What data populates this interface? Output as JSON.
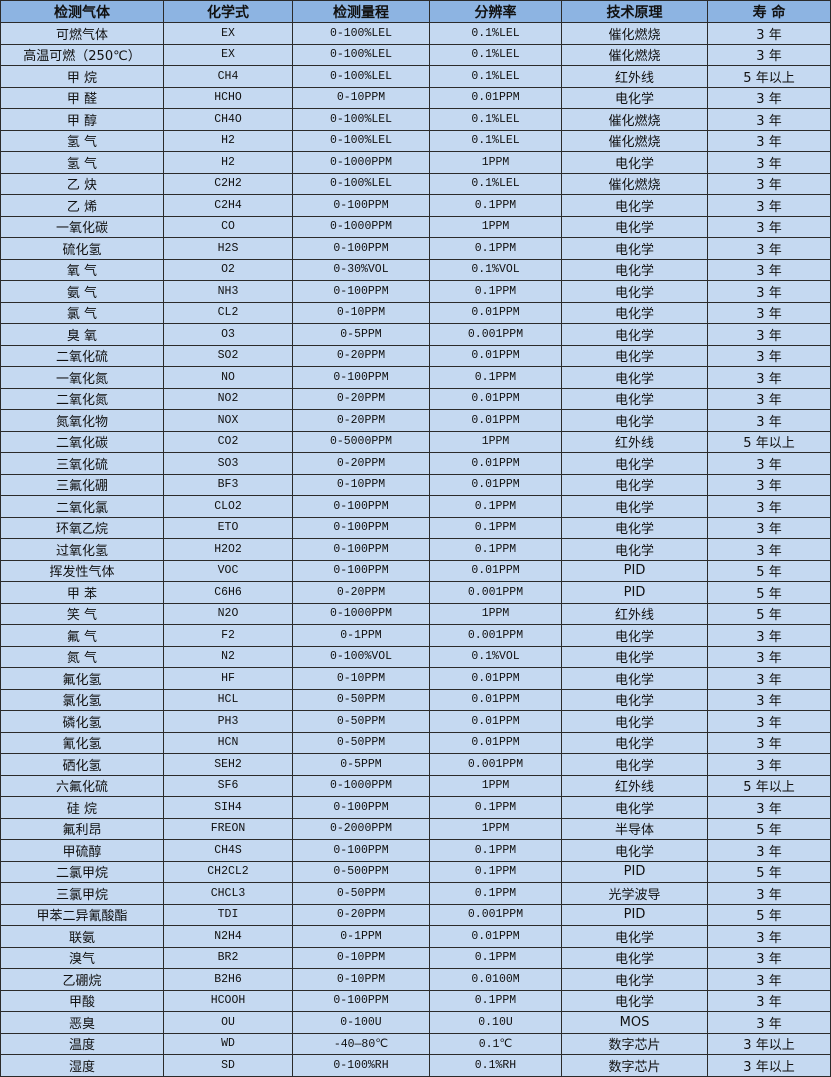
{
  "header_bg": "#8db4e2",
  "row_bg": "#c5d9f1",
  "headers": [
    "检测气体",
    "化学式",
    "检测量程",
    "分辨率",
    "技术原理",
    "寿 命"
  ],
  "rows": [
    [
      "可燃气体",
      "EX",
      "0-100%LEL",
      "0.1%LEL",
      "催化燃烧",
      "3 年"
    ],
    [
      "高温可燃（250℃）",
      "EX",
      "0-100%LEL",
      "0.1%LEL",
      "催化燃烧",
      "3 年"
    ],
    [
      "甲 烷",
      "CH4",
      "0-100%LEL",
      "0.1%LEL",
      "红外线",
      "5 年以上"
    ],
    [
      "甲 醛",
      "HCHO",
      "0-10PPM",
      "0.01PPM",
      "电化学",
      "3 年"
    ],
    [
      "甲 醇",
      "CH4O",
      "0-100%LEL",
      "0.1%LEL",
      "催化燃烧",
      "3 年"
    ],
    [
      "氢 气",
      "H2",
      "0-100%LEL",
      "0.1%LEL",
      "催化燃烧",
      "3 年"
    ],
    [
      "氢 气",
      "H2",
      "0-1000PPM",
      "1PPM",
      "电化学",
      "3 年"
    ],
    [
      "乙 炔",
      "C2H2",
      "0-100%LEL",
      "0.1%LEL",
      "催化燃烧",
      "3 年"
    ],
    [
      "乙 烯",
      "C2H4",
      "0-100PPM",
      "0.1PPM",
      "电化学",
      "3 年"
    ],
    [
      "一氧化碳",
      "CO",
      "0-1000PPM",
      "1PPM",
      "电化学",
      "3 年"
    ],
    [
      "硫化氢",
      "H2S",
      "0-100PPM",
      "0.1PPM",
      "电化学",
      "3 年"
    ],
    [
      "氧 气",
      "O2",
      "0-30%VOL",
      "0.1%VOL",
      "电化学",
      "3 年"
    ],
    [
      "氨 气",
      "NH3",
      "0-100PPM",
      "0.1PPM",
      "电化学",
      "3 年"
    ],
    [
      "氯 气",
      "CL2",
      "0-10PPM",
      "0.01PPM",
      "电化学",
      "3 年"
    ],
    [
      "臭 氧",
      "O3",
      "0-5PPM",
      "0.001PPM",
      "电化学",
      "3 年"
    ],
    [
      "二氧化硫",
      "SO2",
      "0-20PPM",
      "0.01PPM",
      "电化学",
      "3 年"
    ],
    [
      "一氧化氮",
      "NO",
      "0-100PPM",
      "0.1PPM",
      "电化学",
      "3 年"
    ],
    [
      "二氧化氮",
      "NO2",
      "0-20PPM",
      "0.01PPM",
      "电化学",
      "3 年"
    ],
    [
      "氮氧化物",
      "NOX",
      "0-20PPM",
      "0.01PPM",
      "电化学",
      "3 年"
    ],
    [
      "二氧化碳",
      "CO2",
      "0-5000PPM",
      "1PPM",
      "红外线",
      "5 年以上"
    ],
    [
      "三氧化硫",
      "SO3",
      "0-20PPM",
      "0.01PPM",
      "电化学",
      "3 年"
    ],
    [
      "三氟化硼",
      "BF3",
      "0-10PPM",
      "0.01PPM",
      "电化学",
      "3 年"
    ],
    [
      "二氧化氯",
      "CLO2",
      "0-100PPM",
      "0.1PPM",
      "电化学",
      "3 年"
    ],
    [
      "环氧乙烷",
      "ETO",
      "0-100PPM",
      "0.1PPM",
      "电化学",
      "3 年"
    ],
    [
      "过氧化氢",
      "H2O2",
      "0-100PPM",
      "0.1PPM",
      "电化学",
      "3 年"
    ],
    [
      "挥发性气体",
      "VOC",
      "0-100PPM",
      "0.01PPM",
      "PID",
      "5 年"
    ],
    [
      "甲 苯",
      "C6H6",
      "0-20PPM",
      "0.001PPM",
      "PID",
      "5 年"
    ],
    [
      "笑 气",
      "N2O",
      "0-1000PPM",
      "1PPM",
      "红外线",
      "5 年"
    ],
    [
      "氟 气",
      "F2",
      "0-1PPM",
      "0.001PPM",
      "电化学",
      "3 年"
    ],
    [
      "氮 气",
      "N2",
      "0-100%VOL",
      "0.1%VOL",
      "电化学",
      "3 年"
    ],
    [
      "氟化氢",
      "HF",
      "0-10PPM",
      "0.01PPM",
      "电化学",
      "3 年"
    ],
    [
      "氯化氢",
      "HCL",
      "0-50PPM",
      "0.01PPM",
      "电化学",
      "3 年"
    ],
    [
      "磷化氢",
      "PH3",
      "0-50PPM",
      "0.01PPM",
      "电化学",
      "3 年"
    ],
    [
      "氰化氢",
      "HCN",
      "0-50PPM",
      "0.01PPM",
      "电化学",
      "3 年"
    ],
    [
      "硒化氢",
      "SEH2",
      "0-5PPM",
      "0.001PPM",
      "电化学",
      "3 年"
    ],
    [
      "六氟化硫",
      "SF6",
      "0-1000PPM",
      "1PPM",
      "红外线",
      "5 年以上"
    ],
    [
      "硅 烷",
      "SIH4",
      "0-100PPM",
      "0.1PPM",
      "电化学",
      "3 年"
    ],
    [
      "氟利昂",
      "FREON",
      "0-2000PPM",
      "1PPM",
      "半导体",
      "5 年"
    ],
    [
      "甲硫醇",
      "CH4S",
      "0-100PPM",
      "0.1PPM",
      "电化学",
      "3 年"
    ],
    [
      "二氯甲烷",
      "CH2CL2",
      "0-500PPM",
      "0.1PPM",
      "PID",
      "5 年"
    ],
    [
      "三氯甲烷",
      "CHCL3",
      "0-50PPM",
      "0.1PPM",
      "光学波导",
      "3 年"
    ],
    [
      "甲苯二异氰酸酯",
      "TDI",
      "0-20PPM",
      "0.001PPM",
      "PID",
      "5 年"
    ],
    [
      "联氨",
      "N2H4",
      "0-1PPM",
      "0.01PPM",
      "电化学",
      "3 年"
    ],
    [
      "溴气",
      "BR2",
      "0-10PPM",
      "0.1PPM",
      "电化学",
      "3 年"
    ],
    [
      "乙硼烷",
      "B2H6",
      "0-10PPM",
      "0.0100M",
      "电化学",
      "3 年"
    ],
    [
      "甲酸",
      "HCOOH",
      "0-100PPM",
      "0.1PPM",
      "电化学",
      "3 年"
    ],
    [
      "恶臭",
      "OU",
      "0-100U",
      "0.10U",
      "MOS",
      "3 年"
    ],
    [
      "温度",
      "WD",
      "-40—80℃",
      "0.1℃",
      "数字芯片",
      "3 年以上"
    ],
    [
      "湿度",
      "SD",
      "0-100%RH",
      "0.1%RH",
      "数字芯片",
      "3 年以上"
    ]
  ]
}
